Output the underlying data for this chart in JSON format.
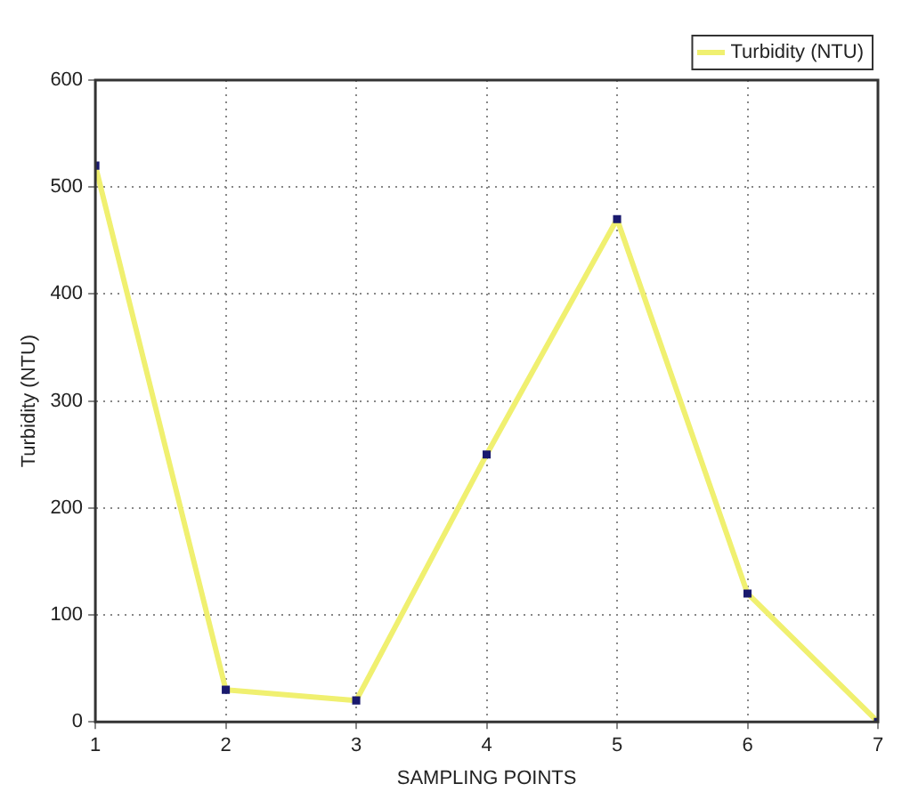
{
  "chart_data": {
    "type": "line",
    "xlabel": "SAMPLING POINTS",
    "ylabel": "Turbidity (NTU)",
    "x": [
      1,
      2,
      3,
      4,
      5,
      6,
      7
    ],
    "series": [
      {
        "name": "Turbidity (NTU)",
        "color": "#f0f070",
        "values": [
          520,
          30,
          20,
          250,
          470,
          120,
          0
        ]
      }
    ],
    "xlim": [
      1,
      7
    ],
    "xticks": [
      1,
      2,
      3,
      4,
      5,
      6,
      7
    ],
    "ylim": [
      0,
      600
    ],
    "yticks": [
      0,
      100,
      200,
      300,
      400,
      500,
      600
    ],
    "grid": true,
    "legend": "top right",
    "marker": "square",
    "line_style": "solid"
  }
}
